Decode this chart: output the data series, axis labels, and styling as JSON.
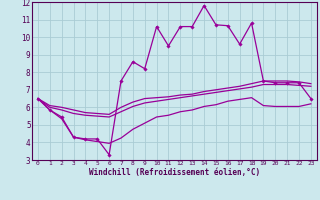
{
  "xlabel": "Windchill (Refroidissement éolien,°C)",
  "xlim": [
    -0.5,
    23.5
  ],
  "ylim": [
    3,
    12
  ],
  "yticks": [
    3,
    4,
    5,
    6,
    7,
    8,
    9,
    10,
    11,
    12
  ],
  "xticks": [
    0,
    1,
    2,
    3,
    4,
    5,
    6,
    7,
    8,
    9,
    10,
    11,
    12,
    13,
    14,
    15,
    16,
    17,
    18,
    19,
    20,
    21,
    22,
    23
  ],
  "background_color": "#cce8ed",
  "grid_color": "#aaccd4",
  "line_color": "#990099",
  "series": {
    "spiky": [
      6.5,
      5.85,
      5.45,
      4.3,
      4.2,
      4.2,
      3.3,
      7.5,
      8.6,
      8.2,
      10.6,
      9.5,
      10.6,
      10.6,
      11.8,
      10.7,
      10.65,
      9.6,
      10.8,
      7.5,
      7.4,
      7.4,
      7.4,
      6.5
    ],
    "upper": [
      6.5,
      6.1,
      6.0,
      5.85,
      5.7,
      5.65,
      5.6,
      6.0,
      6.3,
      6.5,
      6.55,
      6.6,
      6.7,
      6.75,
      6.9,
      7.0,
      7.1,
      7.2,
      7.35,
      7.5,
      7.5,
      7.5,
      7.45,
      7.35
    ],
    "middle": [
      6.5,
      6.0,
      5.85,
      5.65,
      5.55,
      5.5,
      5.45,
      5.75,
      6.05,
      6.25,
      6.35,
      6.45,
      6.55,
      6.65,
      6.75,
      6.85,
      6.95,
      7.05,
      7.15,
      7.3,
      7.3,
      7.3,
      7.25,
      7.2
    ],
    "lower": [
      6.5,
      5.85,
      5.35,
      4.3,
      4.15,
      4.05,
      3.95,
      4.25,
      4.75,
      5.1,
      5.45,
      5.55,
      5.75,
      5.85,
      6.05,
      6.15,
      6.35,
      6.45,
      6.55,
      6.1,
      6.05,
      6.05,
      6.05,
      6.2
    ]
  }
}
